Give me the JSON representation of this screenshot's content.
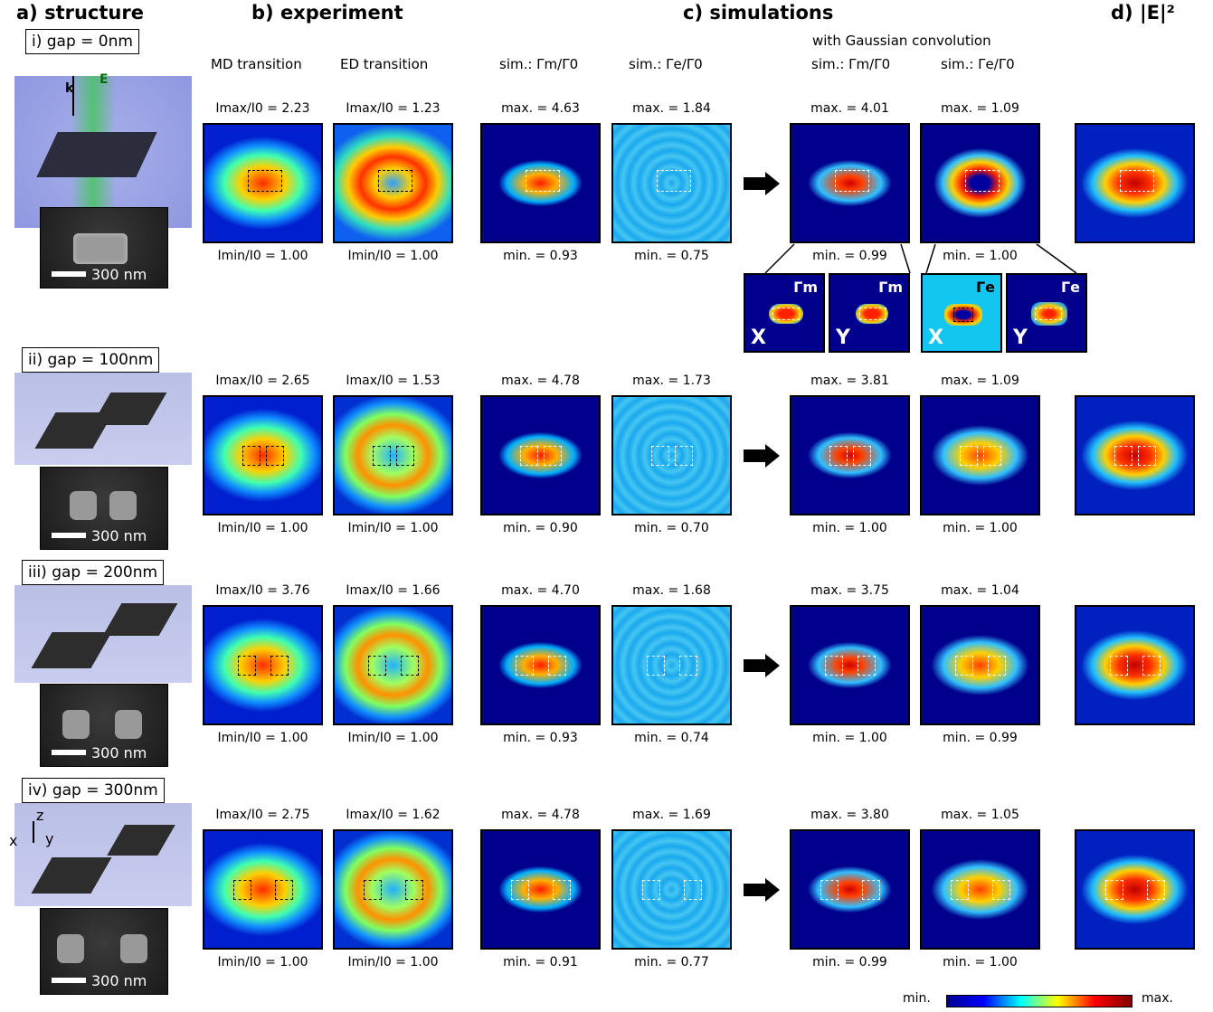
{
  "sections": {
    "a": "a) structure",
    "b": "b) experiment",
    "c": "c) simulations",
    "d": "d) |E|²"
  },
  "headers": {
    "gaussian": "with Gaussian convolution",
    "md": "MD transition",
    "ed": "ED transition",
    "sim_m": "sim.: Γm/Γ0",
    "sim_e": "sim.: Γe/Γ0",
    "conv_m": "sim.: Γm/Γ0",
    "conv_e": "sim.: Γe/Γ0"
  },
  "structure": {
    "k_label": "k",
    "e_label": "E",
    "scale": "300 nm",
    "axes": {
      "x": "x",
      "y": "y",
      "z": "z"
    }
  },
  "rows": [
    {
      "gap": "i) gap = 0nm",
      "md_max": "Imax/I0 = 2.23",
      "md_min": "Imin/I0 = 1.00",
      "ed_max": "Imax/I0 = 1.23",
      "ed_min": "Imin/I0 = 1.00",
      "sm_max": "max. = 4.63",
      "sm_min": "min. = 0.93",
      "se_max": "max. = 1.84",
      "se_min": "min. = 0.75",
      "cm_max": "max. = 4.01",
      "cm_min": "min. = 0.99",
      "ce_max": "max. = 1.09",
      "ce_min": "min. = 1.00"
    },
    {
      "gap": "ii) gap = 100nm",
      "md_max": "Imax/I0 = 2.65",
      "md_min": "Imin/I0 = 1.00",
      "ed_max": "Imax/I0 = 1.53",
      "ed_min": "Imin/I0 = 1.00",
      "sm_max": "max. = 4.78",
      "sm_min": "min. = 0.90",
      "se_max": "max. = 1.73",
      "se_min": "min. = 0.70",
      "cm_max": "max. = 3.81",
      "cm_min": "min. = 1.00",
      "ce_max": "max. = 1.09",
      "ce_min": "min. = 1.00"
    },
    {
      "gap": "iii) gap = 200nm",
      "md_max": "Imax/I0 = 3.76",
      "md_min": "Imin/I0 = 1.00",
      "ed_max": "Imax/I0 = 1.66",
      "ed_min": "Imin/I0 = 1.00",
      "sm_max": "max. = 4.70",
      "sm_min": "min. = 0.93",
      "se_max": "max. = 1.68",
      "se_min": "min. = 0.74",
      "cm_max": "max. = 3.75",
      "cm_min": "min. = 1.00",
      "ce_max": "max. = 1.04",
      "ce_min": "min. = 0.99"
    },
    {
      "gap": "iv) gap = 300nm",
      "md_max": "Imax/I0 = 2.75",
      "md_min": "Imin/I0 = 1.00",
      "ed_max": "Imax/I0 = 1.62",
      "ed_min": "Imin/I0 = 1.00",
      "sm_max": "max. = 4.78",
      "sm_min": "min. = 0.91",
      "se_max": "max. = 1.69",
      "se_min": "min. = 0.77",
      "cm_max": "max. = 3.80",
      "cm_min": "min. = 0.99",
      "ce_max": "max. = 1.05",
      "ce_min": "min. = 1.00"
    }
  ],
  "insets": [
    {
      "gamma": "Γm",
      "axis": "X"
    },
    {
      "gamma": "Γm",
      "axis": "Y"
    },
    {
      "gamma": "Γe",
      "axis": "X"
    },
    {
      "gamma": "Γe",
      "axis": "Y"
    }
  ],
  "colorbar": {
    "min": "min.",
    "max": "max."
  }
}
